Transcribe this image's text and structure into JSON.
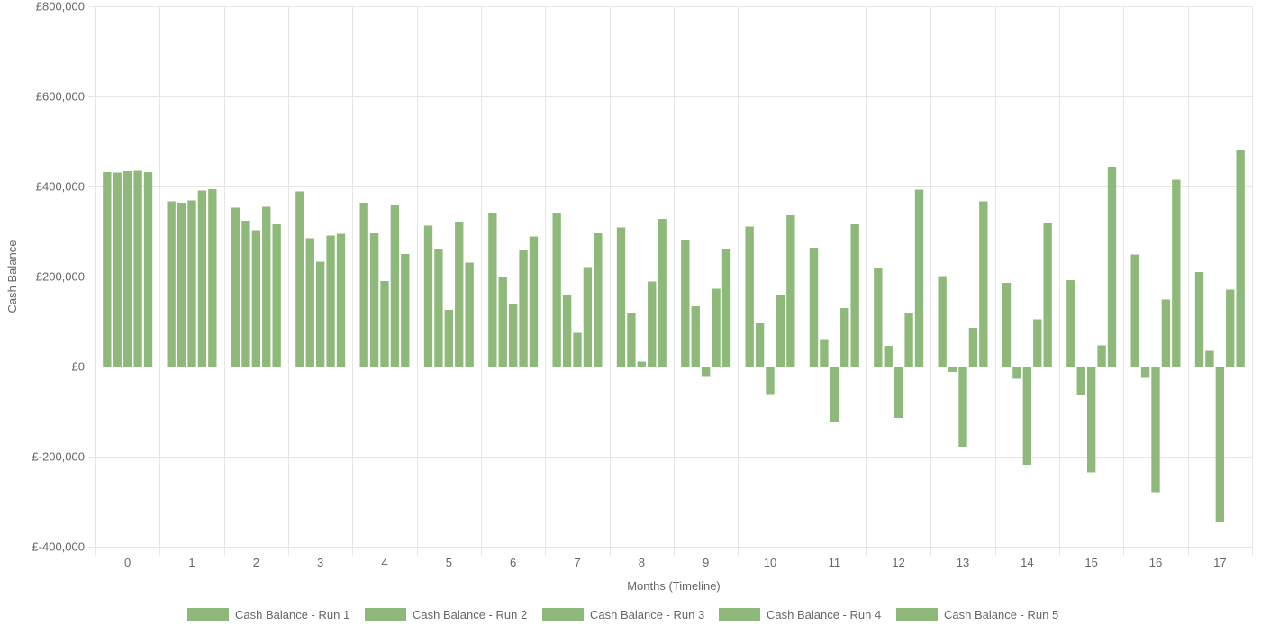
{
  "chart_data": {
    "type": "bar",
    "title": "",
    "xlabel": "Months (Timeline)",
    "ylabel": "Cash Balance",
    "categories": [
      "0",
      "1",
      "2",
      "3",
      "4",
      "5",
      "6",
      "7",
      "8",
      "9",
      "10",
      "11",
      "12",
      "13",
      "14",
      "15",
      "16",
      "17"
    ],
    "ylim": [
      -400000,
      800000
    ],
    "y_ticks": [
      800000,
      600000,
      400000,
      200000,
      0,
      -200000,
      -400000
    ],
    "y_tick_labels": [
      "£800,000",
      "£600,000",
      "£400,000",
      "£200,000",
      "£0",
      "£-200,000",
      "£-400,000"
    ],
    "grid": true,
    "legend_position": "bottom",
    "bar_color": "#8fb97b",
    "series": [
      {
        "name": "Cash Balance - Run 1",
        "values": [
          432000,
          367000,
          353000,
          389000,
          364000,
          313000,
          340000,
          341000,
          309000,
          280000,
          311000,
          264000,
          219000,
          201000,
          186000,
          192000,
          249000,
          210000
        ]
      },
      {
        "name": "Cash Balance - Run 2",
        "values": [
          431000,
          364000,
          324000,
          285000,
          296000,
          260000,
          199000,
          160000,
          119000,
          134000,
          96000,
          61000,
          46000,
          -12000,
          -27000,
          -63000,
          -25000,
          35000
        ]
      },
      {
        "name": "Cash Balance - Run 3",
        "values": [
          434000,
          369000,
          303000,
          233000,
          190000,
          126000,
          138000,
          75000,
          11000,
          -23000,
          -61000,
          -124000,
          -114000,
          -178000,
          -218000,
          -235000,
          -279000,
          -346000
        ]
      },
      {
        "name": "Cash Balance - Run 4",
        "values": [
          435000,
          391000,
          355000,
          291000,
          358000,
          321000,
          258000,
          221000,
          189000,
          173000,
          160000,
          130000,
          118000,
          86000,
          105000,
          47000,
          149000,
          171000
        ]
      },
      {
        "name": "Cash Balance - Run 5",
        "values": [
          432000,
          394000,
          316000,
          295000,
          250000,
          231000,
          289000,
          296000,
          328000,
          260000,
          336000,
          316000,
          393000,
          367000,
          318000,
          444000,
          415000,
          481000
        ]
      }
    ]
  }
}
